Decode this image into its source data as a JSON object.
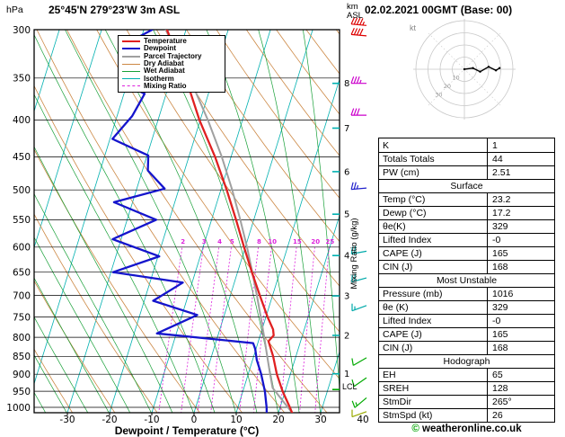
{
  "header": {
    "pressure_unit": "hPa",
    "title": "25°45'N 279°23'W 3m ASL",
    "altitude_unit": "km",
    "altitude_ref": "ASL",
    "datetime": "02.02.2021 00GMT (Base: 00)"
  },
  "legend": {
    "items": [
      {
        "label": "Temperature",
        "color": "#e02020",
        "width": 2,
        "dash": false
      },
      {
        "label": "Dewpoint",
        "color": "#1414cc",
        "width": 2,
        "dash": false
      },
      {
        "label": "Parcel Trajectory",
        "color": "#a0a0a0",
        "width": 2,
        "dash": false
      },
      {
        "label": "Dry Adiabat",
        "color": "#cc8844",
        "width": 1,
        "dash": false
      },
      {
        "label": "Wet Adiabat",
        "color": "#18a038",
        "width": 1,
        "dash": false
      },
      {
        "label": "Isotherm",
        "color": "#00b0b0",
        "width": 1,
        "dash": false
      },
      {
        "label": "Mixing Ratio",
        "color": "#dd22dd",
        "width": 1,
        "dash": true
      }
    ]
  },
  "axes": {
    "pressure_ticks": [
      300,
      350,
      400,
      450,
      500,
      550,
      600,
      650,
      700,
      750,
      800,
      850,
      900,
      950,
      1000
    ],
    "temp_ticks": [
      -30,
      -20,
      -10,
      0,
      10,
      20,
      30,
      40
    ],
    "xlabel": "Dewpoint / Temperature (°C)",
    "right_axis_label": "Mixing Ratio (g/kg)",
    "mixing_ratio_values": [
      2,
      3,
      4,
      5,
      8,
      10,
      15,
      20,
      25
    ],
    "lcl_label": "LCL"
  },
  "chart_data": {
    "type": "skewt-sounding",
    "pressure_axis_hpa": [
      300,
      1020
    ],
    "temp_axis_c": [
      -30,
      40
    ],
    "temperature_profile": [
      [
        1017,
        23.2
      ],
      [
        1000,
        22.3
      ],
      [
        950,
        19.4
      ],
      [
        900,
        16.8
      ],
      [
        850,
        14.6
      ],
      [
        810,
        12.4
      ],
      [
        795,
        13.2
      ],
      [
        780,
        12.6
      ],
      [
        750,
        10.4
      ],
      [
        700,
        7.0
      ],
      [
        650,
        3.4
      ],
      [
        600,
        -0.3
      ],
      [
        550,
        -4.2
      ],
      [
        500,
        -8.6
      ],
      [
        450,
        -13.8
      ],
      [
        400,
        -20.2
      ],
      [
        350,
        -26.5
      ],
      [
        300,
        -34.5
      ]
    ],
    "dewpoint_profile": [
      [
        1017,
        17.2
      ],
      [
        1000,
        16.8
      ],
      [
        950,
        15.2
      ],
      [
        900,
        13.1
      ],
      [
        860,
        11.0
      ],
      [
        830,
        9.8
      ],
      [
        815,
        8.9
      ],
      [
        790,
        -14.6
      ],
      [
        745,
        -6.4
      ],
      [
        712,
        -17.9
      ],
      [
        672,
        -12.2
      ],
      [
        650,
        -29.5
      ],
      [
        618,
        -19.7
      ],
      [
        585,
        -32.0
      ],
      [
        550,
        -23.1
      ],
      [
        520,
        -34.4
      ],
      [
        498,
        -23.4
      ],
      [
        470,
        -28.7
      ],
      [
        448,
        -29.7
      ],
      [
        425,
        -39.4
      ],
      [
        395,
        -36.4
      ],
      [
        368,
        -35.1
      ],
      [
        353,
        -42.0
      ],
      [
        342,
        -35.0
      ],
      [
        316,
        -44.0
      ],
      [
        300,
        -38.0
      ]
    ],
    "parcel_profile": [
      [
        1017,
        23.2
      ],
      [
        940,
        16.8
      ],
      [
        900,
        15.2
      ],
      [
        850,
        13.2
      ],
      [
        800,
        11.1
      ],
      [
        750,
        8.8
      ],
      [
        700,
        6.3
      ],
      [
        650,
        3.5
      ],
      [
        600,
        0.4
      ],
      [
        550,
        -3.2
      ],
      [
        500,
        -7.3
      ],
      [
        450,
        -12.2
      ],
      [
        400,
        -18.2
      ],
      [
        350,
        -25.6
      ],
      [
        300,
        -34.8
      ]
    ],
    "lcl_pressure": 945,
    "km_levels": [
      {
        "km": 1,
        "p": 898.7
      },
      {
        "km": 2,
        "p": 795.0
      },
      {
        "km": 3,
        "p": 701.1
      },
      {
        "km": 4,
        "p": 616.4
      },
      {
        "km": 5,
        "p": 540.2
      },
      {
        "km": 6,
        "p": 471.8
      },
      {
        "km": 7,
        "p": 410.6
      },
      {
        "km": 8,
        "p": 356.0
      }
    ],
    "wind_barbs": [
      {
        "p": 296,
        "speed": 45,
        "dir": 275,
        "color": "#dd0000"
      },
      {
        "p": 306,
        "speed": 40,
        "dir": 275,
        "color": "#dd0000"
      },
      {
        "p": 356,
        "speed": 35,
        "dir": 270,
        "color": "#cc00cc"
      },
      {
        "p": 394,
        "speed": 30,
        "dir": 270,
        "color": "#cc00cc"
      },
      {
        "p": 497,
        "speed": 25,
        "dir": 265,
        "color": "#2222cc"
      },
      {
        "p": 608,
        "speed": 20,
        "dir": 260,
        "color": "#00aaaa"
      },
      {
        "p": 662,
        "speed": 20,
        "dir": 255,
        "color": "#00aaaa"
      },
      {
        "p": 723,
        "speed": 15,
        "dir": 250,
        "color": "#00aaaa"
      },
      {
        "p": 854,
        "speed": 10,
        "dir": 240,
        "color": "#00aa00"
      },
      {
        "p": 910,
        "speed": 10,
        "dir": 235,
        "color": "#00aa00"
      },
      {
        "p": 970,
        "speed": 15,
        "dir": 230,
        "color": "#00aa00"
      },
      {
        "p": 1014,
        "speed": 10,
        "dir": 250,
        "color": "#99aa00"
      }
    ],
    "colors": {
      "temperature": "#e02020",
      "dewpoint": "#1414cc",
      "parcel": "#a0a0a0",
      "dry_adiabat": "#cc8844",
      "wet_adiabat": "#18a038",
      "isotherm": "#00b0b0",
      "mixing_ratio": "#dd22dd"
    }
  },
  "hodograph": {
    "unit_label": "kt",
    "rings_kt": [
      10,
      20,
      30,
      40
    ],
    "ring_labels": [
      "10",
      "20",
      "30"
    ],
    "trace_kt": [
      [
        0,
        0
      ],
      [
        7,
        1
      ],
      [
        13,
        -2
      ],
      [
        20,
        2
      ],
      [
        26,
        -1
      ],
      [
        29,
        1
      ]
    ]
  },
  "tables": {
    "sections": [
      {
        "header": null,
        "rows": [
          [
            "K",
            "1"
          ],
          [
            "Totals Totals",
            "44"
          ],
          [
            "PW (cm)",
            "2.51"
          ]
        ]
      },
      {
        "header": "Surface",
        "rows": [
          [
            "Temp (°C)",
            "23.2"
          ],
          [
            "Dewp (°C)",
            "17.2"
          ],
          [
            "θe(K)",
            "329"
          ],
          [
            "Lifted Index",
            "-0"
          ],
          [
            "CAPE (J)",
            "165"
          ],
          [
            "CIN (J)",
            "168"
          ]
        ]
      },
      {
        "header": "Most Unstable",
        "rows": [
          [
            "Pressure (mb)",
            "1016"
          ],
          [
            "θe (K)",
            "329"
          ],
          [
            "Lifted Index",
            "-0"
          ],
          [
            "CAPE (J)",
            "165"
          ],
          [
            "CIN (J)",
            "168"
          ]
        ]
      },
      {
        "header": "Hodograph",
        "rows": [
          [
            "EH",
            "65"
          ],
          [
            "SREH",
            "128"
          ],
          [
            "StmDir",
            "265°"
          ],
          [
            "StmSpd (kt)",
            "26"
          ]
        ]
      }
    ]
  },
  "footer": {
    "copyright_symbol": "©",
    "copyright_text": " weatheronline.co.uk"
  }
}
